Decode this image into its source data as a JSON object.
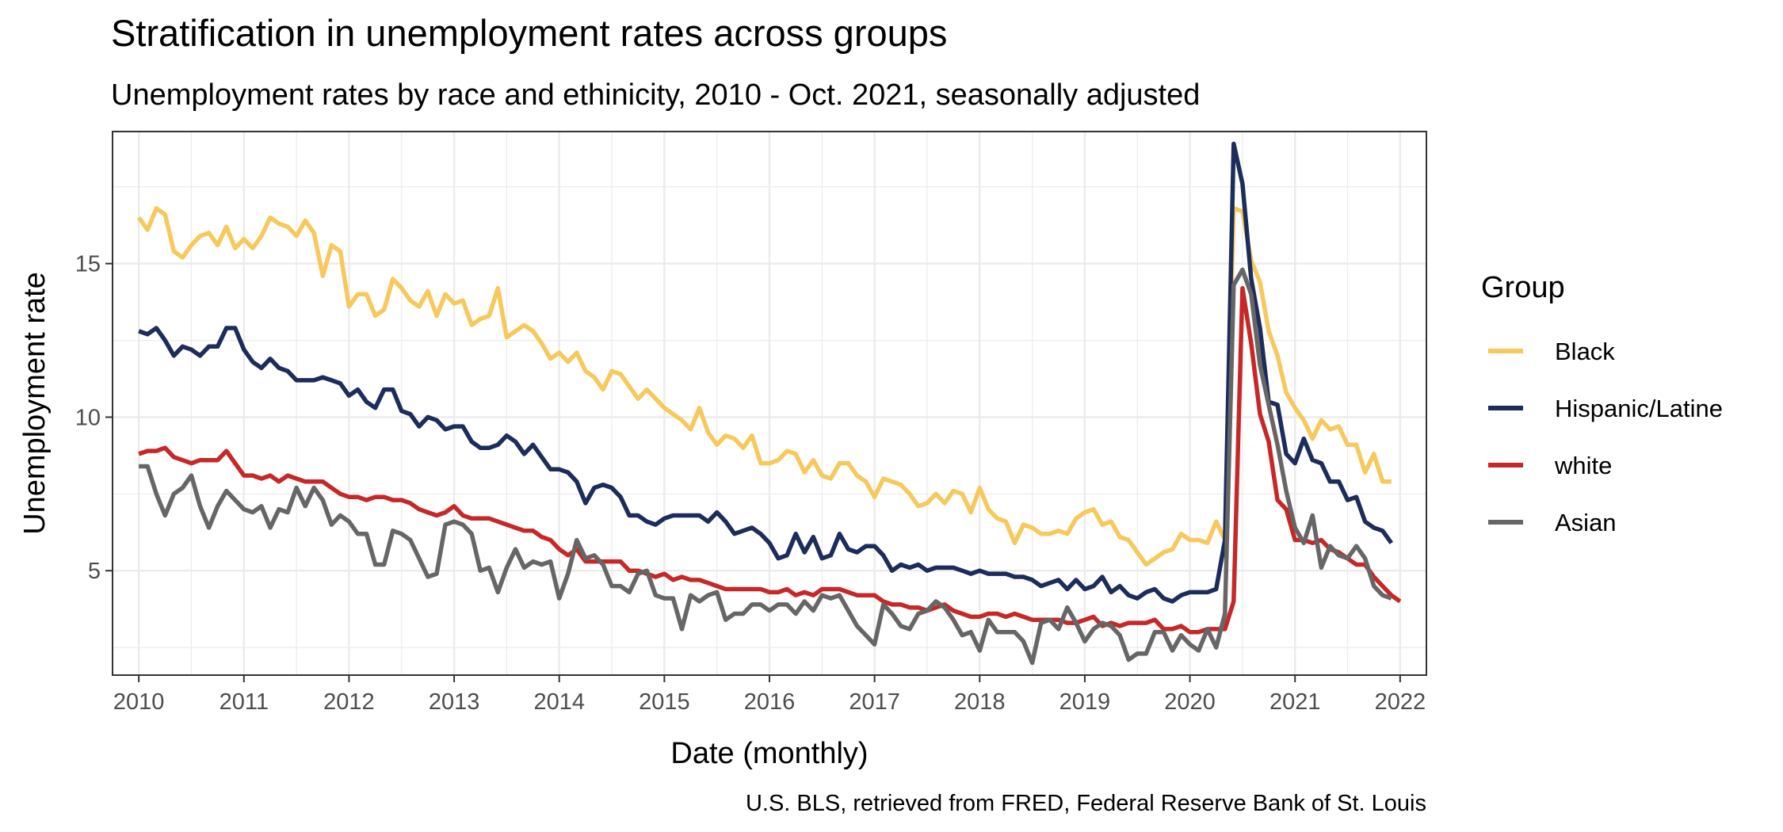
{
  "chart_data": {
    "type": "line",
    "title": "Stratification in unemployment rates across groups",
    "subtitle": "Unemployment rates by race and ethinicity, 2010 - Oct. 2021, seasonally adjusted",
    "xlabel": "Date (monthly)",
    "ylabel": "Unemployment rate",
    "caption": "U.S. BLS, retrieved from FRED, Federal Reserve Bank of St. Louis",
    "x_ticks": [
      "2010",
      "2011",
      "2012",
      "2013",
      "2014",
      "2015",
      "2016",
      "2017",
      "2018",
      "2019",
      "2020",
      "2021",
      "2022"
    ],
    "y_ticks": [
      "5",
      "10",
      "15"
    ],
    "y_tick_values": [
      5,
      10,
      15
    ],
    "xlim": [
      "2009-10",
      "2022-04"
    ],
    "ylim": [
      1.6,
      19.3
    ],
    "grid": true,
    "legend": {
      "title": "Group",
      "position": "right"
    },
    "series": [
      {
        "name": "Black",
        "color": "#f7c85c",
        "start": "2010-01",
        "values": [
          16.5,
          16.1,
          16.8,
          16.6,
          15.4,
          15.2,
          15.6,
          15.9,
          16.0,
          15.6,
          16.2,
          15.5,
          15.8,
          15.5,
          15.9,
          16.5,
          16.3,
          16.2,
          15.9,
          16.4,
          16.0,
          14.6,
          15.6,
          15.4,
          13.6,
          14.0,
          14.0,
          13.3,
          13.5,
          14.5,
          14.2,
          13.8,
          13.6,
          14.1,
          13.3,
          14.0,
          13.7,
          13.8,
          13.0,
          13.2,
          13.3,
          14.2,
          12.6,
          12.8,
          13.0,
          12.8,
          12.4,
          11.9,
          12.1,
          11.8,
          12.1,
          11.5,
          11.3,
          10.9,
          11.5,
          11.4,
          11.0,
          10.6,
          10.9,
          10.6,
          10.3,
          10.1,
          9.9,
          9.6,
          10.3,
          9.5,
          9.1,
          9.4,
          9.3,
          9.0,
          9.4,
          8.5,
          8.5,
          8.6,
          8.9,
          8.8,
          8.2,
          8.6,
          8.1,
          8.0,
          8.5,
          8.5,
          8.1,
          7.9,
          7.4,
          8.0,
          7.9,
          7.8,
          7.5,
          7.1,
          7.2,
          7.5,
          7.2,
          7.6,
          7.5,
          6.9,
          7.7,
          7.0,
          6.7,
          6.6,
          5.9,
          6.5,
          6.4,
          6.2,
          6.2,
          6.3,
          6.2,
          6.7,
          6.9,
          7.0,
          6.5,
          6.6,
          6.1,
          6.0,
          5.6,
          5.2,
          5.4,
          5.6,
          5.7,
          6.2,
          6.0,
          6.0,
          5.9,
          6.6,
          6.0,
          16.8,
          16.7,
          15.1,
          14.4,
          12.8,
          12.0,
          10.8,
          10.3,
          9.9,
          9.3,
          9.9,
          9.6,
          9.7,
          9.1,
          9.1,
          8.2,
          8.8,
          7.9,
          7.9
        ]
      },
      {
        "name": "Hispanic/Latine",
        "color": "#1c2c5b",
        "start": "2010-01",
        "values": [
          12.8,
          12.7,
          12.9,
          12.5,
          12.0,
          12.3,
          12.2,
          12.0,
          12.3,
          12.3,
          12.9,
          12.9,
          12.2,
          11.8,
          11.6,
          11.9,
          11.6,
          11.5,
          11.2,
          11.2,
          11.2,
          11.3,
          11.2,
          11.1,
          10.7,
          10.9,
          10.5,
          10.3,
          10.9,
          10.9,
          10.2,
          10.1,
          9.7,
          10.0,
          9.9,
          9.6,
          9.7,
          9.7,
          9.2,
          9.0,
          9.0,
          9.1,
          9.4,
          9.2,
          8.8,
          9.1,
          8.7,
          8.3,
          8.3,
          8.2,
          7.9,
          7.2,
          7.7,
          7.8,
          7.7,
          7.4,
          6.8,
          6.8,
          6.6,
          6.5,
          6.7,
          6.8,
          6.8,
          6.8,
          6.8,
          6.6,
          6.9,
          6.6,
          6.2,
          6.3,
          6.4,
          6.2,
          5.9,
          5.4,
          5.5,
          6.2,
          5.6,
          6.1,
          5.4,
          5.5,
          6.2,
          5.7,
          5.6,
          5.8,
          5.8,
          5.5,
          5.0,
          5.2,
          5.1,
          5.2,
          5.0,
          5.1,
          5.1,
          5.1,
          5.0,
          4.9,
          5.0,
          4.9,
          4.9,
          4.9,
          4.8,
          4.8,
          4.7,
          4.5,
          4.6,
          4.7,
          4.4,
          4.7,
          4.4,
          4.5,
          4.8,
          4.3,
          4.5,
          4.2,
          4.1,
          4.3,
          4.4,
          4.1,
          4.0,
          4.2,
          4.3,
          4.3,
          4.3,
          4.4,
          6.0,
          18.9,
          17.6,
          14.5,
          12.9,
          10.5,
          10.4,
          8.8,
          8.5,
          9.3,
          8.6,
          8.5,
          7.9,
          7.9,
          7.3,
          7.4,
          6.6,
          6.4,
          6.3,
          5.9
        ]
      },
      {
        "name": "white",
        "color": "#c62828",
        "start": "2010-01",
        "values": [
          8.8,
          8.9,
          8.9,
          9.0,
          8.7,
          8.6,
          8.5,
          8.6,
          8.6,
          8.6,
          8.9,
          8.5,
          8.1,
          8.1,
          8.0,
          8.1,
          7.9,
          8.1,
          8.0,
          7.9,
          7.9,
          7.9,
          7.7,
          7.5,
          7.4,
          7.4,
          7.3,
          7.4,
          7.4,
          7.3,
          7.3,
          7.2,
          7.0,
          6.9,
          6.8,
          6.9,
          7.1,
          6.8,
          6.7,
          6.7,
          6.7,
          6.6,
          6.5,
          6.4,
          6.3,
          6.3,
          6.1,
          6.0,
          5.7,
          5.5,
          5.7,
          5.3,
          5.3,
          5.3,
          5.3,
          5.3,
          5.0,
          5.0,
          4.9,
          4.8,
          4.9,
          4.7,
          4.8,
          4.7,
          4.7,
          4.6,
          4.5,
          4.4,
          4.4,
          4.4,
          4.4,
          4.4,
          4.3,
          4.3,
          4.4,
          4.2,
          4.3,
          4.2,
          4.4,
          4.4,
          4.4,
          4.3,
          4.2,
          4.2,
          4.2,
          4.0,
          3.9,
          3.9,
          3.8,
          3.8,
          3.7,
          3.8,
          3.9,
          3.7,
          3.6,
          3.5,
          3.5,
          3.6,
          3.6,
          3.5,
          3.6,
          3.5,
          3.4,
          3.4,
          3.4,
          3.4,
          3.3,
          3.3,
          3.4,
          3.5,
          3.2,
          3.3,
          3.2,
          3.3,
          3.3,
          3.3,
          3.4,
          3.1,
          3.1,
          3.2,
          3.0,
          3.0,
          3.1,
          3.1,
          3.1,
          4.0,
          14.2,
          12.4,
          10.1,
          9.2,
          7.3,
          7.0,
          6.0,
          6.0,
          5.9,
          6.0,
          5.7,
          5.6,
          5.4,
          5.2,
          5.2,
          4.8,
          4.5,
          4.2,
          4.0
        ]
      },
      {
        "name": "Asian",
        "color": "#666666",
        "start": "2010-01",
        "values": [
          8.4,
          8.4,
          7.5,
          6.8,
          7.5,
          7.7,
          8.1,
          7.1,
          6.4,
          7.1,
          7.6,
          7.3,
          7.0,
          6.9,
          7.1,
          6.4,
          7.0,
          6.9,
          7.7,
          7.1,
          7.7,
          7.3,
          6.5,
          6.8,
          6.6,
          6.2,
          6.2,
          5.2,
          5.2,
          6.3,
          6.2,
          6.0,
          5.4,
          4.8,
          4.9,
          6.5,
          6.6,
          6.5,
          6.2,
          5.0,
          5.1,
          4.3,
          5.1,
          5.7,
          5.1,
          5.3,
          5.2,
          5.3,
          4.1,
          4.9,
          6.0,
          5.4,
          5.5,
          5.2,
          4.5,
          4.5,
          4.3,
          4.9,
          5.0,
          4.2,
          4.1,
          4.1,
          3.1,
          4.2,
          4.0,
          4.2,
          4.3,
          3.4,
          3.6,
          3.6,
          3.9,
          3.9,
          3.7,
          3.9,
          3.9,
          3.6,
          4.0,
          3.7,
          4.2,
          4.1,
          4.2,
          3.7,
          3.2,
          2.9,
          2.6,
          3.9,
          3.6,
          3.2,
          3.1,
          3.6,
          3.7,
          4.0,
          3.8,
          3.4,
          2.9,
          3.0,
          2.4,
          3.4,
          3.0,
          3.0,
          3.0,
          2.7,
          2.0,
          3.3,
          3.4,
          3.1,
          3.8,
          3.3,
          2.7,
          3.1,
          3.3,
          3.2,
          2.9,
          2.1,
          2.3,
          2.3,
          3.0,
          3.0,
          2.4,
          2.9,
          2.6,
          2.4,
          3.1,
          2.5,
          3.6,
          14.3,
          14.8,
          14.0,
          11.7,
          10.4,
          9.1,
          7.6,
          6.4,
          5.9,
          6.8,
          5.1,
          5.8,
          5.5,
          5.4,
          5.8,
          5.4,
          4.5,
          4.2,
          4.1
        ]
      }
    ]
  }
}
